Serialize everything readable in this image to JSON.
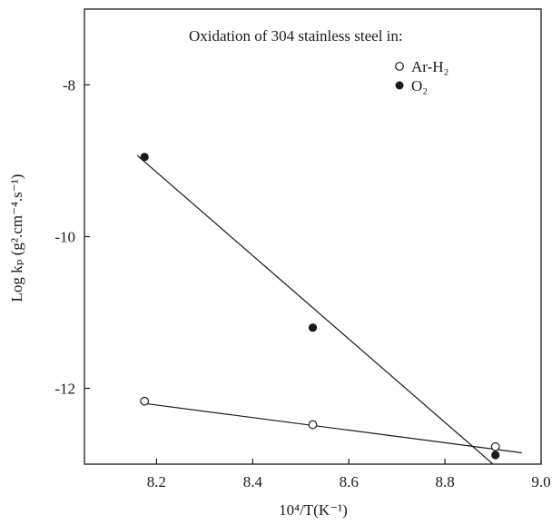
{
  "chart_data": {
    "type": "scatter",
    "xlabel": "10⁴/T(K⁻¹)",
    "ylabel": "Log kₚ (g².cm⁻⁴.s⁻¹)",
    "annotation": "Oxidation of 304 stainless steel in:",
    "xlim": [
      8.05,
      9.0
    ],
    "ylim": [
      -13.0,
      -7.0
    ],
    "xticks": [
      8.2,
      8.4,
      8.6,
      8.8,
      9.0
    ],
    "xtick_labels": [
      "8.2",
      "8.4",
      "8.6",
      "8.8",
      "9.0"
    ],
    "yticks": [
      -12,
      -10,
      -8
    ],
    "ytick_labels": [
      "-12",
      "-10",
      "-8"
    ],
    "grid": false,
    "legend_position": "top-right",
    "series": [
      {
        "name": "Ar-H₂",
        "marker": "open-circle",
        "color": "#1a1a1a",
        "x": [
          8.175,
          8.525,
          8.905
        ],
        "y": [
          -12.17,
          -12.48,
          -12.77
        ],
        "fit_line": {
          "x": [
            8.175,
            8.96
          ],
          "y": [
            -12.2,
            -12.85
          ]
        }
      },
      {
        "name": "O₂",
        "marker": "filled-circle",
        "color": "#1a1a1a",
        "x": [
          8.175,
          8.525,
          8.905
        ],
        "y": [
          -8.95,
          -11.2,
          -12.88
        ],
        "fit_line": {
          "x": [
            8.16,
            8.9
          ],
          "y": [
            -8.93,
            -13.0
          ]
        }
      }
    ]
  }
}
